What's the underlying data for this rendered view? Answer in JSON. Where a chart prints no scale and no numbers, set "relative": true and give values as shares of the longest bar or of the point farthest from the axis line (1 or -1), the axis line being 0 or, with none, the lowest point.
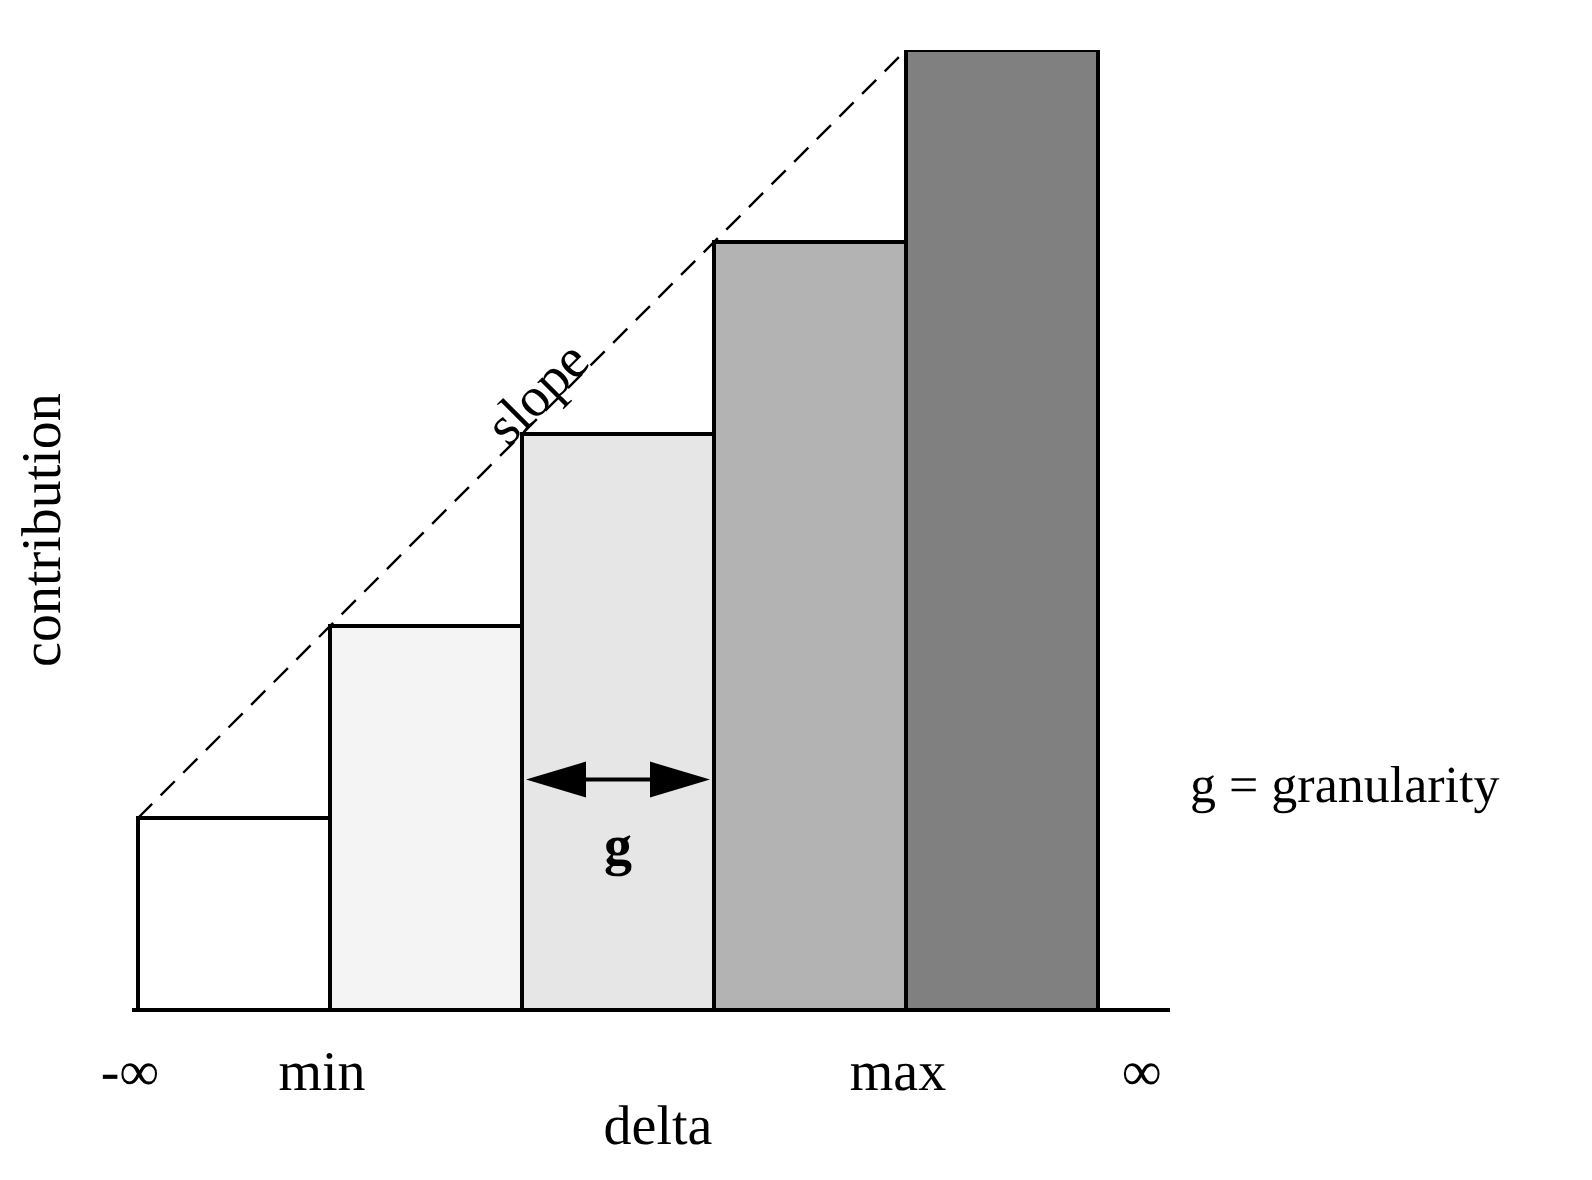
{
  "chart_data": {
    "type": "bar",
    "relative": true,
    "categories": [
      null,
      null,
      null,
      null,
      null
    ],
    "values": [
      0.2,
      0.4,
      0.6,
      0.8,
      1.0
    ],
    "colors": [
      "#ffffff",
      "#f4f4f4",
      "#e6e6e6",
      "#b3b3b3",
      "#808080"
    ],
    "xlabel": "delta",
    "ylabel": "contribution",
    "grid": false,
    "legend": false,
    "annotations": [
      "g",
      "-∞",
      "min",
      "max",
      "∞",
      "g = granularity",
      "slope"
    ]
  }
}
